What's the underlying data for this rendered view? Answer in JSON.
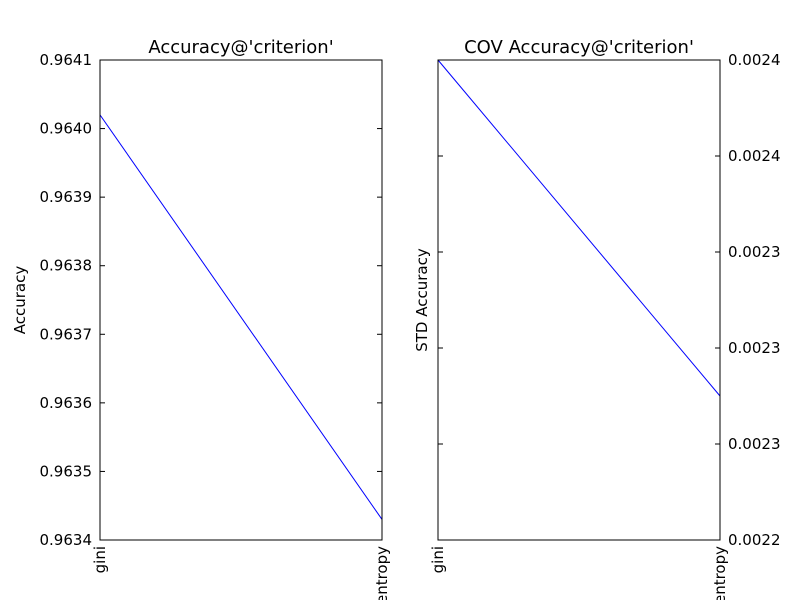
{
  "chart_data": [
    {
      "type": "line",
      "title": "Accuracy@'criterion'",
      "xlabel": "",
      "ylabel": "Accuracy",
      "categories": [
        "gini",
        "entropy"
      ],
      "series": [
        {
          "values": [
            0.96402,
            0.96343
          ],
          "color": "#0000ff"
        }
      ],
      "ylim": [
        0.9634,
        0.9641
      ],
      "yticks": [
        "0.9634",
        "0.9635",
        "0.9636",
        "0.9637",
        "0.9638",
        "0.9639",
        "0.9640",
        "0.9641"
      ],
      "yaxis_side": "left",
      "grid": false
    },
    {
      "type": "line",
      "title": "COV Accuracy@'criterion'",
      "xlabel": "",
      "ylabel": "STD Accuracy",
      "categories": [
        "gini",
        "entropy"
      ],
      "series": [
        {
          "values": [
            0.0024,
            0.00226
          ],
          "color": "#0000ff"
        }
      ],
      "ylim": [
        0.0022,
        0.0024
      ],
      "yticks": [
        "0.0022",
        "0.0023",
        "0.0023",
        "0.0023",
        "0.0024",
        "0.0024",
        "0.0024"
      ],
      "ytick_values": [
        0.0022,
        0.00224,
        0.00228,
        0.00232,
        0.00236,
        0.0024,
        0.00244
      ],
      "yaxis_side": "right",
      "grid": false
    }
  ]
}
